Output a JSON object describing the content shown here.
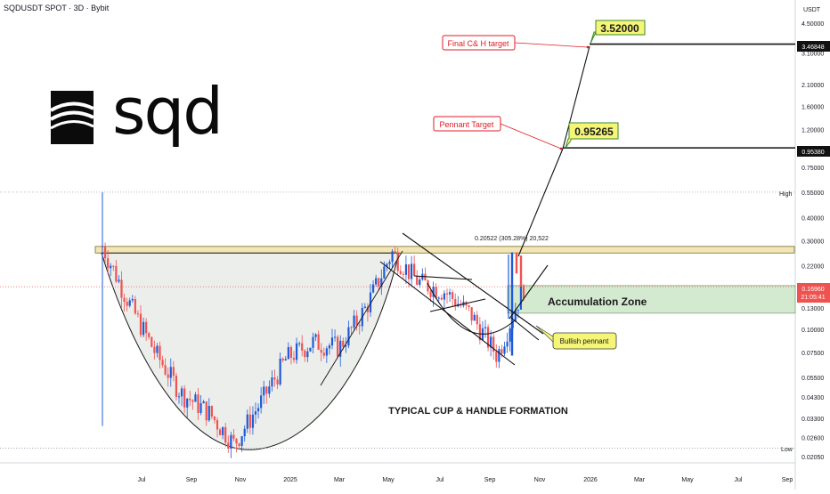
{
  "header": {
    "ticker": "SQDUSDT SPOT · 3D · Bybit",
    "currency": "USDT"
  },
  "logo": {
    "text": "sqd",
    "icon": "sqd-logo-mark-icon"
  },
  "colors": {
    "accent": "#1e5bd8",
    "bull": "#26a69a",
    "bear": "#ef5350",
    "zone_resistance": "#f2e6b6",
    "zone_accumulation": "#d4ead0",
    "target_box": "#f5f578",
    "annotation_red": "#e01b24"
  },
  "annotations": {
    "final_target_label": "Final C& H target",
    "final_target_value": "3.52000",
    "pennant_target_label": "Pennant Target",
    "pennant_target_value": "0.95265",
    "accumulation_zone": "Accumulation Zone",
    "bullish_pennant": "Bullish pennant",
    "pattern": "TYPICAL CUP & HANDLE FORMATION",
    "measure": "0.20522 (305.28%) 20,522"
  },
  "price_scale": {
    "high_label": "High",
    "low_label": "Low",
    "markers": [
      {
        "value": "3.46848",
        "kind": "level"
      },
      {
        "value": "0.95380",
        "kind": "level"
      },
      {
        "value": "0.16960",
        "kind": "current"
      },
      {
        "value": "21:05:41",
        "kind": "timer"
      }
    ]
  },
  "chart_data": {
    "type": "candlestick",
    "y_scale": "log",
    "ylim": [
      0.019,
      5.2
    ],
    "y_ticks": [
      "4.50000",
      "3.10000",
      "2.10000",
      "1.60000",
      "1.20000",
      "0.75000",
      "0.55000",
      "0.40000",
      "0.30000",
      "0.22000",
      "0.13000",
      "0.10000",
      "0.07500",
      "0.05500",
      "0.04300",
      "0.03300",
      "0.02600",
      "0.02050"
    ],
    "x_ticks": [
      "Jul",
      "Sep",
      "Nov",
      "2025",
      "Mar",
      "May",
      "Jul",
      "Sep",
      "Nov",
      "2026",
      "Mar",
      "May",
      "Jul",
      "Sep"
    ],
    "levels": {
      "high": 0.55,
      "low": 0.02276,
      "current": 0.1696
    },
    "targets": {
      "pennant": 0.95265,
      "final": 3.52,
      "pennant_line": 0.9538,
      "final_line": 3.46848
    },
    "resistance_zone": [
      0.258,
      0.28
    ],
    "accumulation_zone": [
      0.122,
      0.172
    ],
    "trend_samples": [
      {
        "t": "Jun 2024",
        "v": 0.28
      },
      {
        "t": "Jul 2024",
        "v": 0.14
      },
      {
        "t": "Aug 2024",
        "v": 0.075
      },
      {
        "t": "Sep 2024",
        "v": 0.045
      },
      {
        "t": "Oct 2024",
        "v": 0.036
      },
      {
        "t": "Nov 2024",
        "v": 0.024
      },
      {
        "t": "Dec 2024",
        "v": 0.04
      },
      {
        "t": "Jan 2025",
        "v": 0.07
      },
      {
        "t": "Feb 2025",
        "v": 0.085
      },
      {
        "t": "Mar 2025",
        "v": 0.08
      },
      {
        "t": "Apr 2025",
        "v": 0.13
      },
      {
        "t": "May 2025",
        "v": 0.26
      },
      {
        "t": "Jun 2025",
        "v": 0.18
      },
      {
        "t": "Jul 2025",
        "v": 0.16
      },
      {
        "t": "Aug 2025",
        "v": 0.12
      },
      {
        "t": "Sep 2025",
        "v": 0.072
      },
      {
        "t": "Oct 2025",
        "v": 0.17
      }
    ]
  }
}
